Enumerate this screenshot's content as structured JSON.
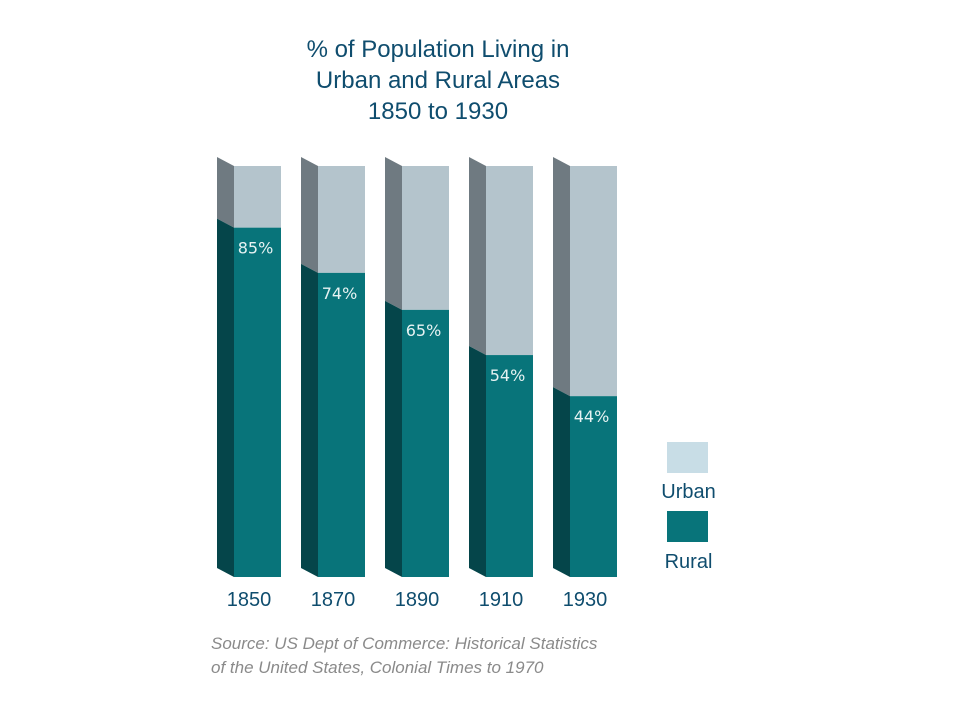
{
  "chart_data": {
    "type": "bar",
    "stacked": true,
    "title": [
      "% of Population Living in",
      "Urban and Rural Areas",
      "1850 to 1930"
    ],
    "categories": [
      "1850",
      "1870",
      "1890",
      "1910",
      "1930"
    ],
    "series": [
      {
        "name": "Rural",
        "values": [
          85,
          74,
          65,
          54,
          44
        ],
        "labels": [
          "85%",
          "74%",
          "65%",
          "54%",
          "44%"
        ],
        "color": "#08747a"
      },
      {
        "name": "Urban",
        "values": [
          15,
          26,
          35,
          46,
          56
        ],
        "color": "#b4c4cc"
      }
    ],
    "ylim": [
      0,
      100
    ],
    "legend": {
      "position": "right",
      "items": [
        {
          "name": "Urban",
          "color": "#c8dde6"
        },
        {
          "name": "Rural",
          "color": "#08747a"
        }
      ]
    },
    "source": [
      "Source: US Dept of Commerce: Historical Statistics",
      "of the United States, Colonial Times to 1970"
    ]
  }
}
